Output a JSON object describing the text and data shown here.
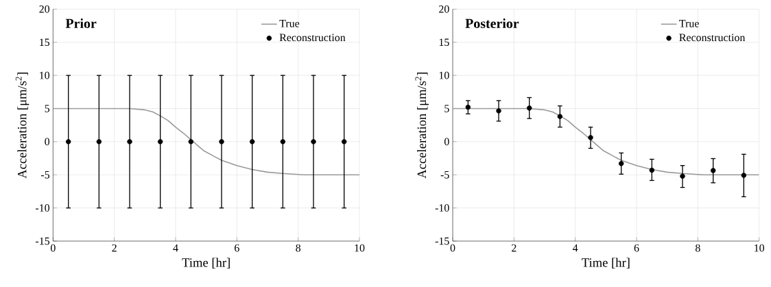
{
  "chart_data": [
    {
      "type": "line",
      "title": "Prior",
      "xlabel": "Time [hr]",
      "ylabel": "Acceleration [μm/s$^{2}$]",
      "xlim": [
        0,
        10
      ],
      "ylim": [
        -15,
        20
      ],
      "xticks": [
        0,
        2,
        4,
        6,
        8,
        10
      ],
      "yticks": [
        -15,
        -10,
        -5,
        0,
        5,
        10,
        15,
        20
      ],
      "grid": true,
      "legend": "top right",
      "series": [
        {
          "name": "True",
          "color": "#999999",
          "marker": "none",
          "x": [
            0,
            2.5,
            3.0,
            3.25,
            3.5,
            3.75,
            4.0,
            4.25,
            4.5,
            4.9,
            5.25,
            5.5,
            6.0,
            6.5,
            7.0,
            7.5,
            8.2,
            10
          ],
          "values": [
            5,
            5,
            4.8,
            4.5,
            3.9,
            3.2,
            2.2,
            1.3,
            0.3,
            -1.3,
            -2.2,
            -2.8,
            -3.6,
            -4.2,
            -4.6,
            -4.8,
            -5,
            -5
          ]
        },
        {
          "name": "Reconstruction",
          "type": "scatter",
          "color": "#000000",
          "marker": "circle",
          "x": [
            0.5,
            1.5,
            2.5,
            3.5,
            4.5,
            5.5,
            6.5,
            7.5,
            8.5,
            9.5
          ],
          "values": [
            0,
            0,
            0,
            0,
            0,
            0,
            0,
            0,
            0,
            0
          ],
          "errors": [
            10,
            10,
            10,
            10,
            10,
            10,
            10,
            10,
            10,
            10
          ]
        }
      ]
    },
    {
      "type": "line",
      "title": "Posterior",
      "xlabel": "Time [hr]",
      "ylabel": "Acceleration [μm/s$^{2}$]",
      "xlim": [
        0,
        10
      ],
      "ylim": [
        -15,
        20
      ],
      "xticks": [
        0,
        2,
        4,
        6,
        8,
        10
      ],
      "yticks": [
        -15,
        -10,
        -5,
        0,
        5,
        10,
        15,
        20
      ],
      "grid": true,
      "legend": "top right",
      "series": [
        {
          "name": "True",
          "color": "#999999",
          "marker": "none",
          "x": [
            0,
            2.5,
            3.0,
            3.25,
            3.5,
            3.75,
            4.0,
            4.25,
            4.5,
            4.9,
            5.25,
            5.5,
            6.0,
            6.5,
            7.0,
            7.5,
            8.2,
            10
          ],
          "values": [
            5,
            5,
            4.8,
            4.5,
            3.9,
            3.2,
            2.2,
            1.3,
            0.3,
            -1.3,
            -2.2,
            -2.8,
            -3.6,
            -4.2,
            -4.6,
            -4.8,
            -5,
            -5
          ]
        },
        {
          "name": "Reconstruction",
          "type": "scatter",
          "color": "#000000",
          "marker": "circle",
          "x": [
            0.5,
            1.5,
            2.5,
            3.5,
            4.5,
            5.5,
            6.5,
            7.5,
            8.5,
            9.5
          ],
          "values": [
            5.2,
            4.65,
            5.07,
            3.8,
            0.62,
            -3.3,
            -4.3,
            -5.2,
            -4.35,
            -5.07
          ],
          "errors": [
            [
              4.2,
              6.2
            ],
            [
              3.1,
              6.2
            ],
            [
              3.5,
              6.65
            ],
            [
              2.2,
              5.4
            ],
            [
              -1.0,
              2.2
            ],
            [
              -4.9,
              -1.7
            ],
            [
              -5.85,
              -2.65
            ],
            [
              -6.9,
              -3.6
            ],
            [
              -6.2,
              -2.55
            ],
            [
              -8.3,
              -1.9
            ]
          ]
        }
      ]
    }
  ]
}
